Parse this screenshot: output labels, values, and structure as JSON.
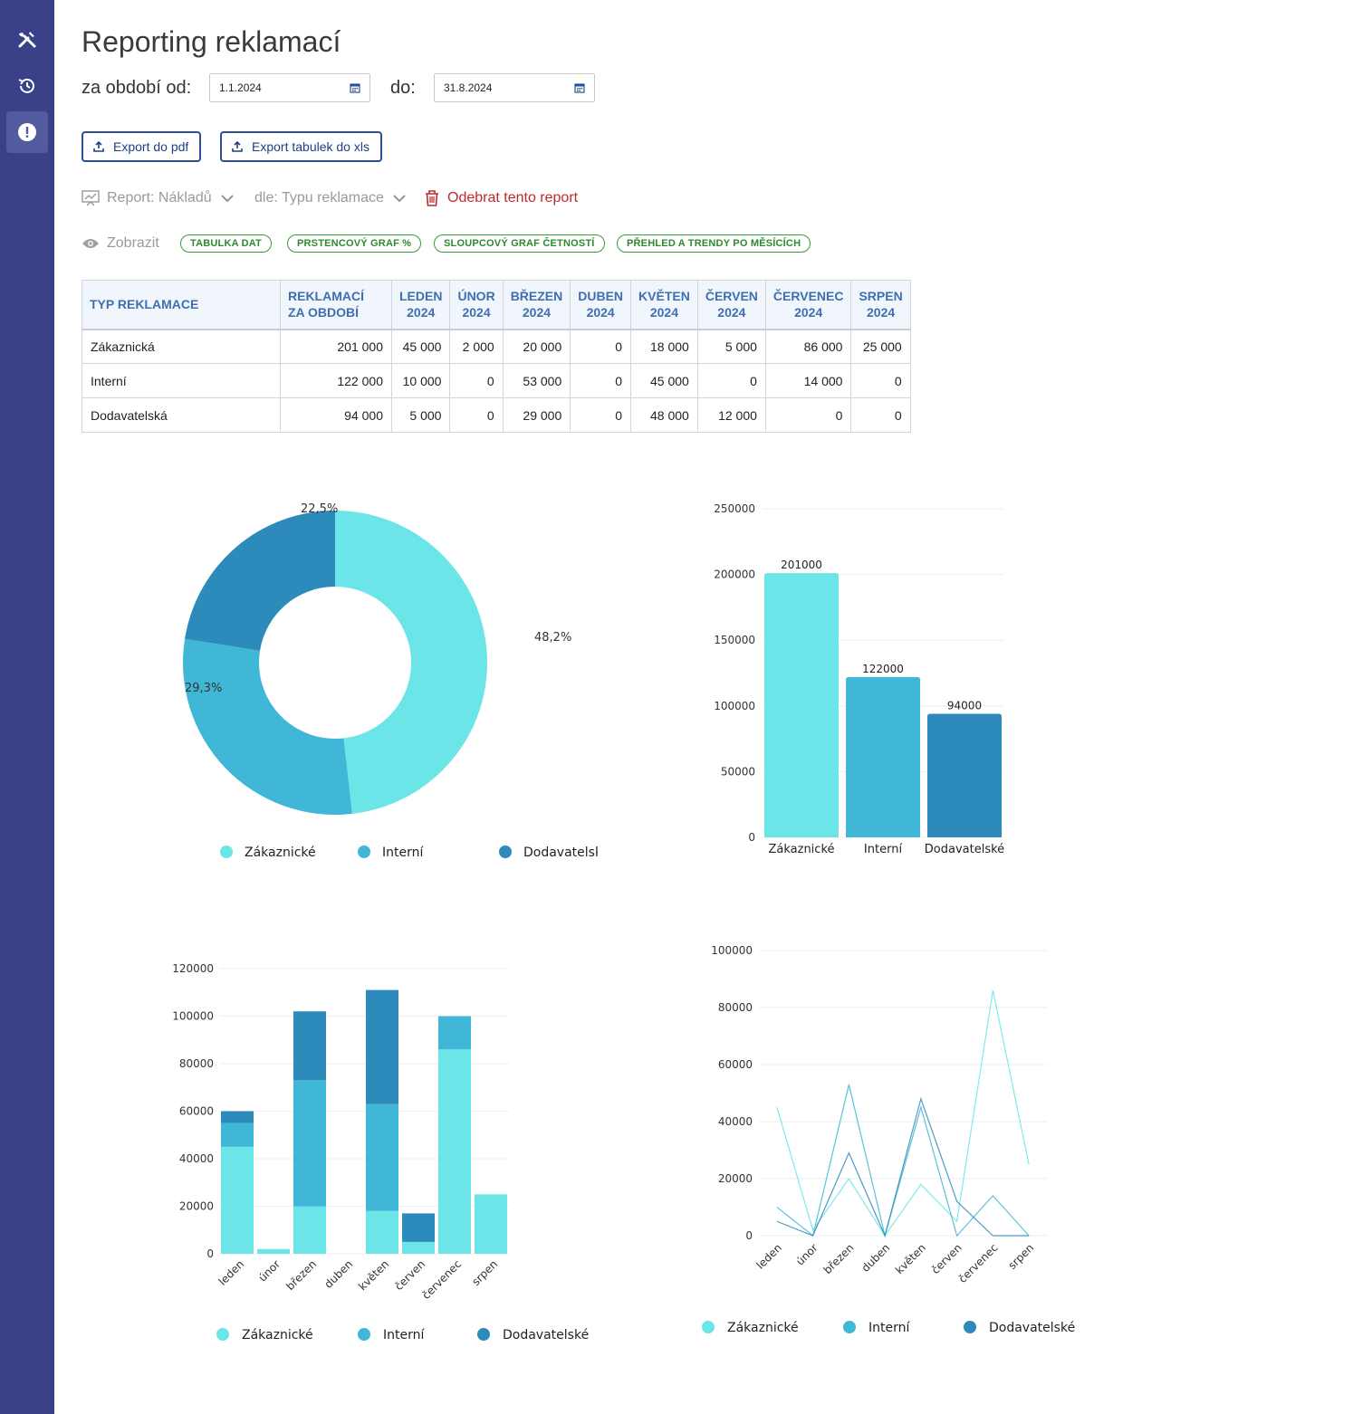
{
  "page": {
    "title": "Reporting reklamací"
  },
  "period": {
    "from_label": "za období od:",
    "from_value": "1.1.2024",
    "to_label": "do:",
    "to_value": "31.8.2024"
  },
  "toolbar": {
    "export_pdf": "Export do pdf",
    "export_xls": "Export tabulek do xls"
  },
  "report": {
    "type_label": "Report: Nákladů",
    "by_label": "dle: Typu reklamace",
    "remove_label": "Odebrat tento report"
  },
  "display": {
    "label": "Zobrazit",
    "chips": [
      "TABULKA DAT",
      "PRSTENCOVÝ GRAF %",
      "SLOUPCOVÝ GRAF ČETNOSTÍ",
      "PŘEHLED A TRENDY PO MĚSÍCÍCH"
    ]
  },
  "colors": {
    "sidebar": "#3a4189",
    "zakaznicke": "#6be5e8",
    "interni": "#40b7d6",
    "dodavatelske": "#2c8bba"
  },
  "table": {
    "headers": [
      "TYP REKLAMACE",
      "REKLAMACÍ ZA OBDOBÍ",
      "LEDEN 2024",
      "ÚNOR 2024",
      "BŘEZEN 2024",
      "DUBEN 2024",
      "KVĚTEN 2024",
      "ČERVEN 2024",
      "ČERVENEC 2024",
      "SRPEN 2024"
    ],
    "rows": [
      [
        "Zákaznická",
        "201 000",
        "45 000",
        "2 000",
        "20 000",
        "0",
        "18 000",
        "5 000",
        "86 000",
        "25 000"
      ],
      [
        "Interní",
        "122 000",
        "10 000",
        "0",
        "53 000",
        "0",
        "45 000",
        "0",
        "14 000",
        "0"
      ],
      [
        "Dodavatelská",
        "94 000",
        "5 000",
        "0",
        "29 000",
        "0",
        "48 000",
        "12 000",
        "0",
        "0"
      ]
    ]
  },
  "chart_data": [
    {
      "type": "pie",
      "subtype": "donut",
      "categories": [
        "Zákaznické",
        "Interní",
        "Dodavatelské"
      ],
      "values": [
        48.2,
        29.3,
        22.5
      ],
      "labels": [
        "48,2%",
        "29,3%",
        "22,5%"
      ],
      "legend": [
        "Zákaznické",
        "Interní",
        "Dodavatelské"
      ],
      "legend_position": "bottom"
    },
    {
      "type": "bar",
      "categories": [
        "Zákaznické",
        "Interní",
        "Dodavatelské"
      ],
      "values": [
        201000,
        122000,
        94000
      ],
      "data_labels": [
        "201000",
        "122000",
        "94000"
      ],
      "yticks": [
        "0",
        "50000",
        "100000",
        "150000",
        "200000",
        "250000"
      ],
      "ylim": [
        0,
        250000
      ],
      "grid": true
    },
    {
      "type": "bar",
      "subtype": "stacked",
      "categories": [
        "leden",
        "únor",
        "březen",
        "duben",
        "květen",
        "červen",
        "červenec",
        "srpen"
      ],
      "series": [
        {
          "name": "Zákaznické",
          "values": [
            45000,
            2000,
            20000,
            0,
            18000,
            5000,
            86000,
            25000
          ]
        },
        {
          "name": "Interní",
          "values": [
            10000,
            0,
            53000,
            0,
            45000,
            0,
            14000,
            0
          ]
        },
        {
          "name": "Dodavatelské",
          "values": [
            5000,
            0,
            29000,
            0,
            48000,
            12000,
            0,
            0
          ]
        }
      ],
      "yticks": [
        "0",
        "20000",
        "40000",
        "60000",
        "80000",
        "100000",
        "120000"
      ],
      "ylim": [
        0,
        120000
      ],
      "grid": true,
      "legend_position": "bottom"
    },
    {
      "type": "line",
      "categories": [
        "leden",
        "únor",
        "březen",
        "duben",
        "květen",
        "červen",
        "červenec",
        "srpen"
      ],
      "series": [
        {
          "name": "Zákaznické",
          "values": [
            45000,
            2000,
            20000,
            0,
            18000,
            5000,
            86000,
            25000
          ]
        },
        {
          "name": "Interní",
          "values": [
            10000,
            0,
            53000,
            0,
            45000,
            0,
            14000,
            0
          ]
        },
        {
          "name": "Dodavatelské",
          "values": [
            5000,
            0,
            29000,
            0,
            48000,
            12000,
            0,
            0
          ]
        }
      ],
      "yticks": [
        "0",
        "20000",
        "40000",
        "60000",
        "80000",
        "100000"
      ],
      "ylim": [
        0,
        100000
      ],
      "grid": true,
      "legend_position": "bottom"
    }
  ]
}
